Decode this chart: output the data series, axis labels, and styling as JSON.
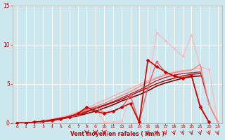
{
  "bg_color": "#cce8ee",
  "grid_color": "#ffffff",
  "xlabel": "Vent moyen/en rafales ( km/h )",
  "xlabel_color": "#cc0000",
  "tick_color": "#cc0000",
  "xlim": [
    -0.5,
    23.5
  ],
  "ylim": [
    0,
    15
  ],
  "xticks": [
    0,
    1,
    2,
    3,
    4,
    5,
    6,
    7,
    8,
    9,
    10,
    11,
    12,
    13,
    14,
    15,
    16,
    17,
    18,
    19,
    20,
    21,
    22,
    23
  ],
  "yticks": [
    0,
    5,
    10,
    15
  ],
  "lines": [
    {
      "x": [
        0,
        1,
        2,
        3,
        4,
        5,
        6,
        7,
        8,
        9,
        10,
        11,
        12,
        13,
        14,
        15,
        16,
        17,
        18,
        19,
        20,
        21
      ],
      "y": [
        0,
        0,
        0.1,
        0.2,
        0.3,
        0.5,
        0.7,
        0.9,
        1.2,
        1.5,
        1.9,
        2.3,
        2.8,
        3.2,
        3.6,
        4.1,
        4.7,
        5.1,
        5.4,
        5.7,
        5.9,
        6.0
      ],
      "color": "#880000",
      "lw": 1.2,
      "marker": null,
      "ms": 0,
      "zorder": 4
    },
    {
      "x": [
        0,
        1,
        2,
        3,
        4,
        5,
        6,
        7,
        8,
        9,
        10,
        11,
        12,
        13,
        14,
        15,
        16,
        17,
        18,
        19,
        20,
        21
      ],
      "y": [
        0,
        0,
        0.1,
        0.2,
        0.4,
        0.6,
        0.8,
        1.0,
        1.4,
        1.8,
        2.2,
        2.6,
        3.0,
        3.5,
        4.0,
        4.5,
        5.0,
        5.4,
        5.7,
        6.0,
        6.2,
        6.3
      ],
      "color": "#aa0000",
      "lw": 1.0,
      "marker": null,
      "ms": 0,
      "zorder": 4
    },
    {
      "x": [
        0,
        1,
        2,
        3,
        4,
        5,
        6,
        7,
        8,
        9,
        10,
        11,
        12,
        13,
        14,
        15,
        16,
        17,
        18,
        19,
        20,
        21,
        22
      ],
      "y": [
        0,
        0,
        0.1,
        0.2,
        0.4,
        0.6,
        0.8,
        1.1,
        1.5,
        1.9,
        2.3,
        2.7,
        3.2,
        3.7,
        4.2,
        4.8,
        5.4,
        5.8,
        6.1,
        6.3,
        6.4,
        6.5,
        2.5
      ],
      "color": "#cc2222",
      "lw": 1.0,
      "marker": null,
      "ms": 0,
      "zorder": 3
    },
    {
      "x": [
        0,
        1,
        2,
        3,
        4,
        5,
        6,
        7,
        8,
        9,
        10,
        11,
        12,
        13,
        14,
        15,
        16,
        17,
        18,
        19,
        20,
        21,
        22
      ],
      "y": [
        0,
        0,
        0.1,
        0.2,
        0.3,
        0.5,
        0.7,
        1.0,
        1.8,
        2.0,
        1.3,
        1.5,
        2.0,
        3.5,
        0.1,
        4.5,
        7.8,
        6.5,
        6.0,
        5.8,
        6.0,
        2.2,
        0.1
      ],
      "color": "#dd6666",
      "lw": 1.0,
      "marker": "D",
      "ms": 2.0,
      "zorder": 5
    },
    {
      "x": [
        0,
        1,
        2,
        3,
        4,
        5,
        6,
        7,
        8,
        9,
        10,
        11,
        12,
        13,
        14,
        15,
        16,
        17,
        18,
        19,
        20,
        21,
        22,
        23
      ],
      "y": [
        0,
        0,
        0.1,
        0.2,
        0.3,
        0.5,
        0.7,
        1.0,
        1.5,
        1.8,
        0.1,
        0.1,
        0.2,
        3.5,
        0.1,
        4.5,
        11.5,
        10.5,
        9.5,
        8.5,
        11.2,
        7.2,
        6.8,
        0.1
      ],
      "color": "#ffbbbb",
      "lw": 1.0,
      "marker": "D",
      "ms": 2.0,
      "zorder": 2
    },
    {
      "x": [
        0,
        1,
        2,
        3,
        4,
        5,
        6,
        7,
        8,
        9,
        10,
        11,
        12,
        13,
        14,
        15,
        16,
        17,
        18,
        19,
        20,
        21,
        22
      ],
      "y": [
        0,
        0,
        0.1,
        0.2,
        0.3,
        0.5,
        0.8,
        1.2,
        2.0,
        1.5,
        1.2,
        1.5,
        2.0,
        2.5,
        0.1,
        8.0,
        7.2,
        6.5,
        6.0,
        5.7,
        6.0,
        2.0,
        0.1
      ],
      "color": "#cc0000",
      "lw": 1.2,
      "marker": "D",
      "ms": 2.5,
      "zorder": 6
    },
    {
      "x": [
        0,
        1,
        2,
        3,
        4,
        5,
        6,
        7,
        8,
        9,
        10,
        11,
        12,
        13,
        14,
        15,
        16,
        17,
        18,
        19,
        20,
        21,
        22,
        23
      ],
      "y": [
        0,
        0,
        0.1,
        0.2,
        0.4,
        0.6,
        0.9,
        1.2,
        1.7,
        2.1,
        2.5,
        3.0,
        3.5,
        4.0,
        4.6,
        5.2,
        5.7,
        6.1,
        6.4,
        6.6,
        6.7,
        7.5,
        2.3,
        0.1
      ],
      "color": "#ee8888",
      "lw": 1.0,
      "marker": null,
      "ms": 0,
      "zorder": 3
    },
    {
      "x": [
        0,
        1,
        2,
        3,
        4,
        5,
        6,
        7,
        8,
        9,
        10,
        11,
        12,
        13,
        14,
        15,
        16,
        17,
        18,
        19,
        20,
        21,
        22,
        23
      ],
      "y": [
        0,
        0,
        0.1,
        0.3,
        0.5,
        0.7,
        1.0,
        1.4,
        1.9,
        2.4,
        2.9,
        3.4,
        3.9,
        4.4,
        4.9,
        5.4,
        5.8,
        6.2,
        6.5,
        6.7,
        6.8,
        7.0,
        2.5,
        0.2
      ],
      "color": "#ffaaaa",
      "lw": 1.0,
      "marker": null,
      "ms": 0,
      "zorder": 2
    }
  ],
  "down_arrows": [
    {
      "x": 8,
      "label": "b"
    },
    {
      "x": 9,
      "label": "d"
    },
    {
      "x": 10,
      "label": "d"
    }
  ],
  "small_arrows": [
    15,
    16,
    17,
    18,
    19,
    20,
    21,
    22,
    23
  ]
}
